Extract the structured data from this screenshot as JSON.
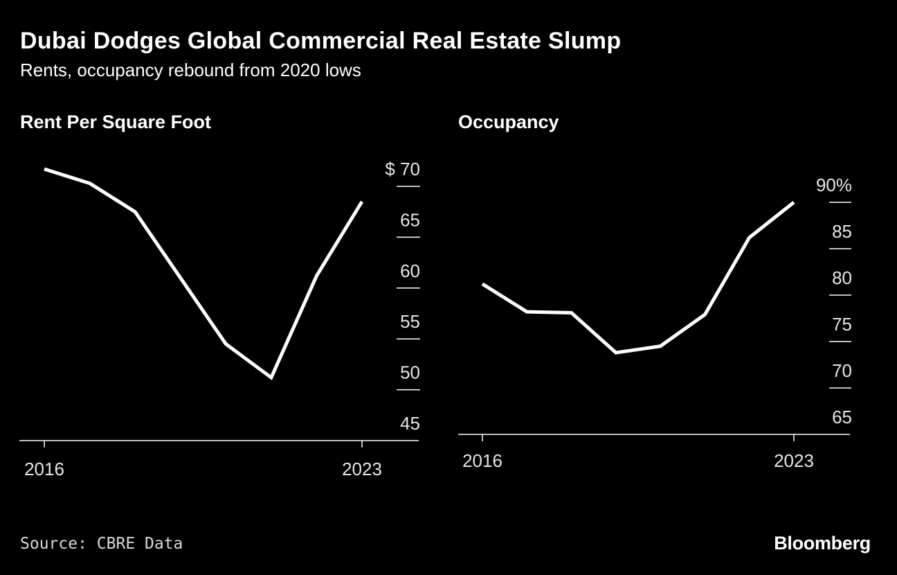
{
  "header": {
    "title": "Dubai Dodges Global Commercial Real Estate Slump",
    "subtitle": "Rents, occupancy rebound from 2020 lows"
  },
  "footer": {
    "source": "Source: CBRE Data",
    "logo": "Bloomberg"
  },
  "colors": {
    "background": "#000000",
    "line": "#ffffff",
    "axis": "#ffffff",
    "text": "#ffffff"
  },
  "chart_data": [
    {
      "type": "line",
      "title": "Rent Per Square Foot",
      "x": [
        2016,
        2017,
        2018,
        2019,
        2020,
        2021,
        2022,
        2023
      ],
      "x_tick_labels": [
        "2016",
        "2023"
      ],
      "series": [
        {
          "name": "Rent Per Square Foot",
          "values": [
            71.7,
            70.3,
            67.5,
            61.0,
            54.5,
            51.2,
            61.2,
            68.5
          ]
        }
      ],
      "y_ticks": [
        45,
        50,
        55,
        60,
        65,
        70
      ],
      "y_tick_labels": [
        "45",
        "50",
        "55",
        "60",
        "65",
        "$ 70"
      ],
      "ylim": [
        45,
        70
      ],
      "y_unit_prefix": "$",
      "xlabel": "",
      "ylabel": "",
      "grid": false
    },
    {
      "type": "line",
      "title": "Occupancy",
      "x": [
        2016,
        2017,
        2018,
        2019,
        2020,
        2021,
        2022,
        2023
      ],
      "x_tick_labels": [
        "2016",
        "2023"
      ],
      "series": [
        {
          "name": "Occupancy",
          "values": [
            81.2,
            78.2,
            78.1,
            73.8,
            74.5,
            77.9,
            86.2,
            90.0
          ]
        }
      ],
      "y_ticks": [
        65,
        70,
        75,
        80,
        85,
        90
      ],
      "y_tick_labels": [
        "65",
        "70",
        "75",
        "80",
        "85",
        "90%"
      ],
      "ylim": [
        65,
        90
      ],
      "y_unit_suffix": "%",
      "xlabel": "",
      "ylabel": "",
      "grid": false
    }
  ]
}
